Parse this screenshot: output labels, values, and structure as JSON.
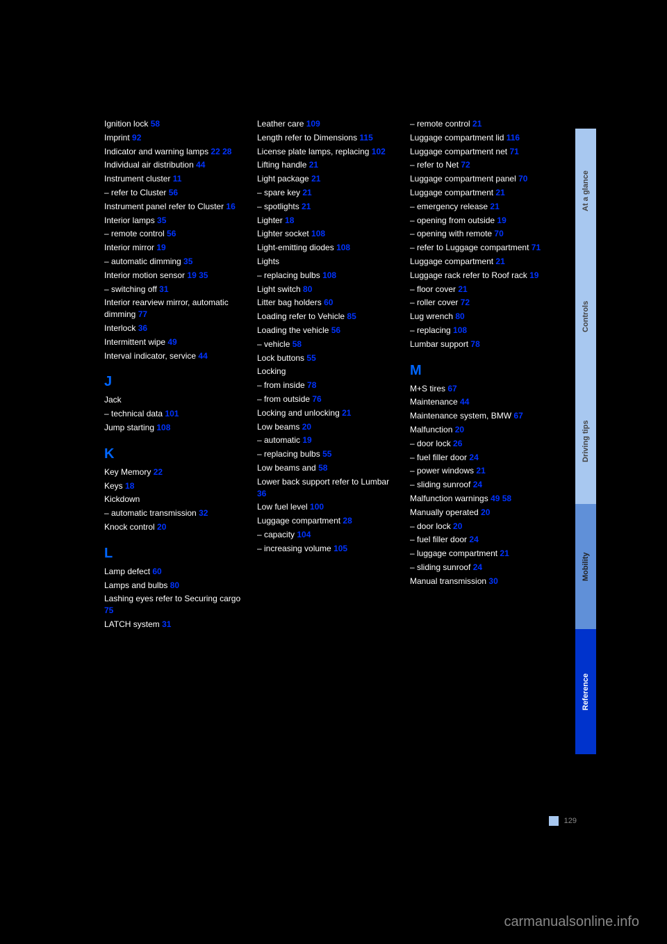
{
  "columns": [
    [
      {
        "type": "entry",
        "text": "Ignition lock",
        "page": "58"
      },
      {
        "type": "entry",
        "text": "Imprint",
        "page": "92"
      },
      {
        "type": "entry",
        "text": "Indicator and warning lamps",
        "page": "22 28"
      },
      {
        "type": "entry",
        "text": "Individual air distribution",
        "page": "44"
      },
      {
        "type": "entry",
        "text": "Instrument cluster",
        "page": "11"
      },
      {
        "type": "entry",
        "text": "– refer to Cluster",
        "page": "56"
      },
      {
        "type": "entry",
        "text": "Instrument panel refer to Cluster",
        "page": "16"
      },
      {
        "type": "entry",
        "text": "Interior lamps",
        "page": "35"
      },
      {
        "type": "entry",
        "text": "– remote control",
        "page": "56"
      },
      {
        "type": "entry",
        "text": "Interior mirror",
        "page": "19"
      },
      {
        "type": "entry",
        "text": "– automatic dimming",
        "page": "35"
      },
      {
        "type": "entry",
        "text": "Interior motion sensor",
        "page": "19 35"
      },
      {
        "type": "entry",
        "text": "– switching off",
        "page": "31"
      },
      {
        "type": "entry",
        "text": "Interior rearview mirror, automatic dimming",
        "page": "77"
      },
      {
        "type": "entry",
        "text": "Interlock",
        "page": "36"
      },
      {
        "type": "entry",
        "text": "Intermittent wipe",
        "page": "49"
      },
      {
        "type": "entry",
        "text": "Interval indicator, service",
        "page": "44"
      },
      {
        "type": "letter",
        "text": "J"
      },
      {
        "type": "entry",
        "text": "Jack",
        "page": ""
      },
      {
        "type": "entry",
        "text": "– technical data",
        "page": "101"
      },
      {
        "type": "entry",
        "text": "Jump starting",
        "page": "108"
      },
      {
        "type": "letter",
        "text": "K"
      },
      {
        "type": "entry",
        "text": "Key Memory",
        "page": "22"
      },
      {
        "type": "entry",
        "text": "Keys",
        "page": "18"
      },
      {
        "type": "entry",
        "text": "Kickdown",
        "page": ""
      },
      {
        "type": "entry",
        "text": "– automatic transmission",
        "page": "32"
      },
      {
        "type": "entry",
        "text": "Knock control",
        "page": "20"
      },
      {
        "type": "letter",
        "text": "L"
      },
      {
        "type": "entry",
        "text": "Lamp defect",
        "page": "60"
      },
      {
        "type": "entry",
        "text": "Lamps and bulbs",
        "page": "80"
      },
      {
        "type": "entry",
        "text": "Lashing eyes refer to Securing cargo",
        "page": "75"
      },
      {
        "type": "entry",
        "text": "LATCH system",
        "page": "31"
      }
    ],
    [
      {
        "type": "entry",
        "text": "Leather care",
        "page": "109"
      },
      {
        "type": "entry",
        "text": "Length refer to Dimensions",
        "page": "115"
      },
      {
        "type": "entry",
        "text": "License plate lamps, replacing",
        "page": "102"
      },
      {
        "type": "entry",
        "text": "Lifting handle",
        "page": "21"
      },
      {
        "type": "entry",
        "text": "Light package",
        "page": "21"
      },
      {
        "type": "entry",
        "text": "– spare key",
        "page": "21"
      },
      {
        "type": "entry",
        "text": "– spotlights",
        "page": "21"
      },
      {
        "type": "entry",
        "text": "Lighter",
        "page": "18"
      },
      {
        "type": "entry",
        "text": "Lighter socket",
        "page": "108"
      },
      {
        "type": "entry",
        "text": "Light-emitting diodes",
        "page": "108"
      },
      {
        "type": "entry",
        "text": "Lights",
        "page": ""
      },
      {
        "type": "entry",
        "text": "– replacing bulbs",
        "page": "108"
      },
      {
        "type": "entry",
        "text": "Light switch",
        "page": "80"
      },
      {
        "type": "entry",
        "text": "Litter bag holders",
        "page": "60"
      },
      {
        "type": "entry",
        "text": "Loading refer to Vehicle",
        "page": "85"
      },
      {
        "type": "entry",
        "text": "Loading the vehicle",
        "page": "56"
      },
      {
        "type": "entry",
        "text": "– vehicle",
        "page": "58"
      },
      {
        "type": "entry",
        "text": "Lock buttons",
        "page": "55"
      },
      {
        "type": "entry",
        "text": "Locking",
        "page": ""
      },
      {
        "type": "entry",
        "text": "– from inside",
        "page": "78"
      },
      {
        "type": "entry",
        "text": "– from outside",
        "page": "76"
      },
      {
        "type": "entry",
        "text": "Locking and unlocking",
        "page": "21"
      },
      {
        "type": "entry",
        "text": "Low beams",
        "page": "20"
      },
      {
        "type": "entry",
        "text": "– automatic",
        "page": "19"
      },
      {
        "type": "entry",
        "text": "– replacing bulbs",
        "page": "55"
      },
      {
        "type": "entry",
        "text": "Low beams and",
        "page": "58"
      },
      {
        "type": "entry",
        "text": "Lower back support refer to Lumbar",
        "page": "36"
      },
      {
        "type": "entry",
        "text": "Low fuel level",
        "page": "100"
      },
      {
        "type": "entry",
        "text": "Luggage compartment",
        "page": "28"
      },
      {
        "type": "entry",
        "text": "– capacity",
        "page": "104"
      },
      {
        "type": "entry",
        "text": "– increasing volume",
        "page": "105"
      }
    ],
    [
      {
        "type": "entry",
        "text": "– remote control",
        "page": "21"
      },
      {
        "type": "entry",
        "text": "Luggage compartment lid",
        "page": "116"
      },
      {
        "type": "entry",
        "text": "Luggage compartment net",
        "page": "71"
      },
      {
        "type": "entry",
        "text": "– refer to Net",
        "page": "72"
      },
      {
        "type": "entry",
        "text": "Luggage compartment panel",
        "page": "70"
      },
      {
        "type": "entry",
        "text": "Luggage compartment",
        "page": "21"
      },
      {
        "type": "entry",
        "text": "– emergency release",
        "page": "21"
      },
      {
        "type": "entry",
        "text": "– opening from outside",
        "page": "19"
      },
      {
        "type": "entry",
        "text": "– opening with remote",
        "page": "70"
      },
      {
        "type": "entry",
        "text": "– refer to Luggage compartment",
        "page": "71"
      },
      {
        "type": "entry",
        "text": "Luggage compartment",
        "page": "21"
      },
      {
        "type": "entry",
        "text": "Luggage rack refer to Roof rack",
        "page": "19"
      },
      {
        "type": "entry",
        "text": "– floor cover",
        "page": "21"
      },
      {
        "type": "entry",
        "text": "– roller cover",
        "page": "72"
      },
      {
        "type": "entry",
        "text": "Lug wrench",
        "page": "80"
      },
      {
        "type": "entry",
        "text": "– replacing",
        "page": "108"
      },
      {
        "type": "entry",
        "text": "Lumbar support",
        "page": "78"
      },
      {
        "type": "letter",
        "text": "M"
      },
      {
        "type": "entry",
        "text": "M+S tires",
        "page": "67"
      },
      {
        "type": "entry",
        "text": "Maintenance",
        "page": "44"
      },
      {
        "type": "entry",
        "text": "Maintenance system, BMW",
        "page": "67"
      },
      {
        "type": "entry",
        "text": "Malfunction",
        "page": "20"
      },
      {
        "type": "entry",
        "text": "– door lock",
        "page": "26"
      },
      {
        "type": "entry",
        "text": "– fuel filler door",
        "page": "24"
      },
      {
        "type": "entry",
        "text": "– power windows",
        "page": "21"
      },
      {
        "type": "entry",
        "text": "– sliding sunroof",
        "page": "24"
      },
      {
        "type": "entry",
        "text": "Malfunction warnings",
        "page": "49 58"
      },
      {
        "type": "entry",
        "text": "Manually operated",
        "page": "20"
      },
      {
        "type": "entry",
        "text": "– door lock",
        "page": "20"
      },
      {
        "type": "entry",
        "text": "– fuel filler door",
        "page": "24"
      },
      {
        "type": "entry",
        "text": "– luggage compartment",
        "page": "21"
      },
      {
        "type": "entry",
        "text": "– sliding sunroof",
        "page": "24"
      },
      {
        "type": "entry",
        "text": "Manual transmission",
        "page": "30"
      }
    ]
  ],
  "tabs": [
    {
      "label": "At a glance",
      "class": "light"
    },
    {
      "label": "Controls",
      "class": "light"
    },
    {
      "label": "Driving tips",
      "class": "light"
    },
    {
      "label": "Mobility",
      "class": "mid"
    },
    {
      "label": "Reference",
      "class": "dark"
    }
  ],
  "footer_page": "129",
  "watermark": "carmanualsonline.info"
}
